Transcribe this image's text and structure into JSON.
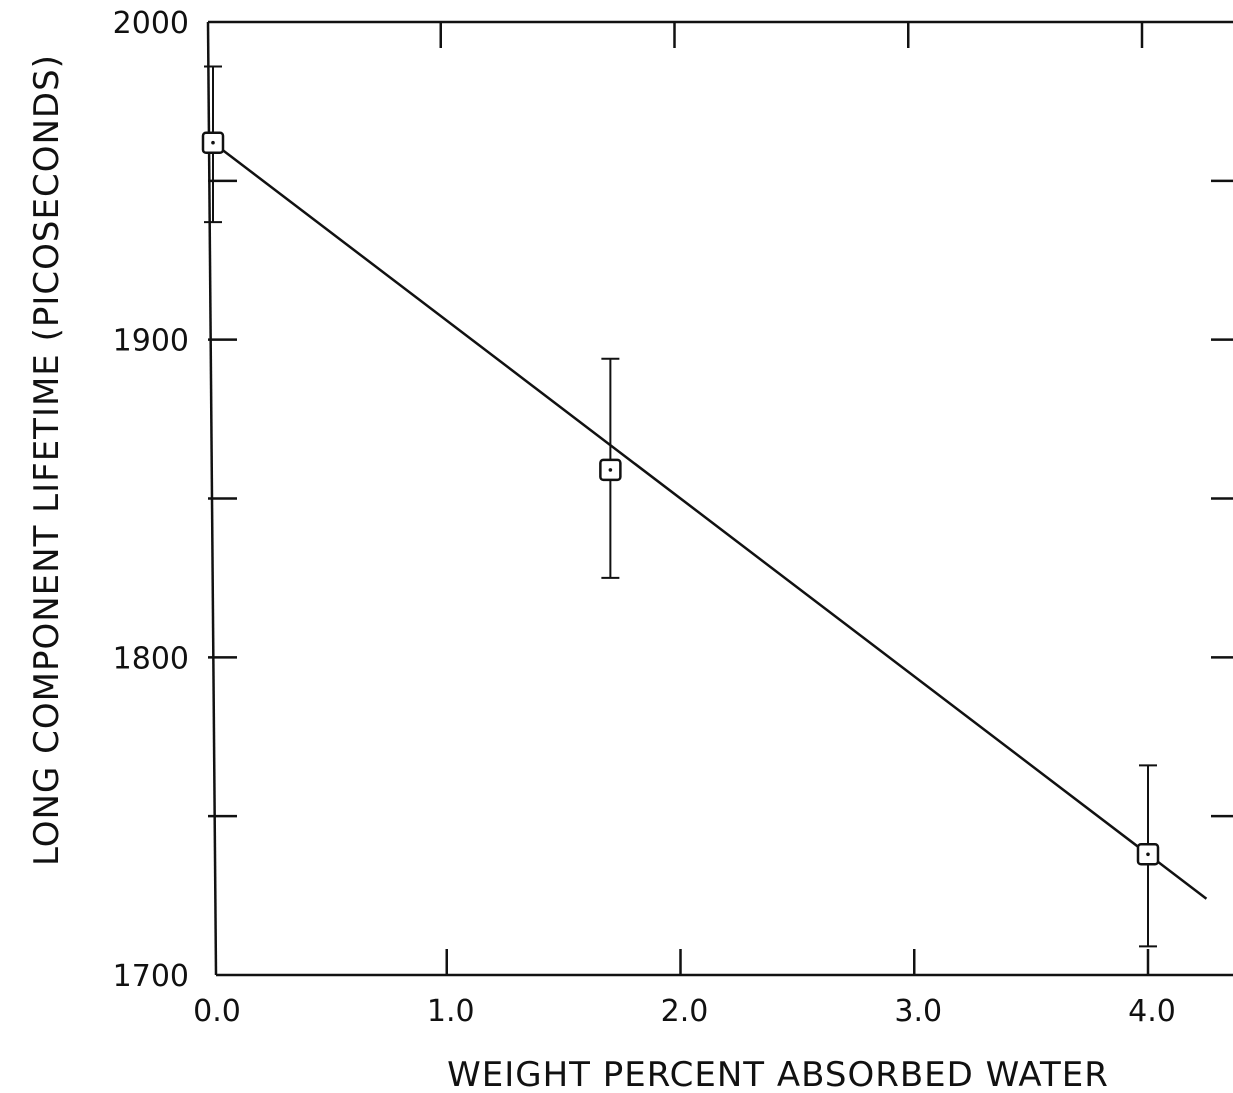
{
  "chart_data": {
    "type": "scatter",
    "xlabel": "WEIGHT PERCENT ABSORBED WATER",
    "ylabel": "LONG COMPONENT LIFETIME (PICOSECONDS)",
    "xlim": [
      0.0,
      4.0
    ],
    "ylim": [
      1700,
      2000
    ],
    "x_ticks": [
      0.0,
      1.0,
      2.0,
      3.0,
      4.0
    ],
    "x_tick_labels": [
      "0.0",
      "1.0",
      "2.0",
      "3.0",
      "4.0"
    ],
    "y_ticks": [
      1700,
      1750,
      1800,
      1850,
      1900,
      1950,
      2000
    ],
    "y_tick_labels": [
      "1700",
      "",
      "1800",
      "",
      "1900",
      "",
      "2000"
    ],
    "grid": false,
    "series": [
      {
        "marker": "square-with-dot",
        "points": [
          {
            "x": 0.0,
            "y": 1962,
            "err_low": 1937,
            "err_high": 1986
          },
          {
            "x": 1.7,
            "y": 1859,
            "err_low": 1825,
            "err_high": 1894
          },
          {
            "x": 4.0,
            "y": 1738,
            "err_low": 1709,
            "err_high": 1766
          }
        ]
      }
    ],
    "fit_line": {
      "x": [
        0.0,
        4.25
      ],
      "y": [
        1962,
        1724
      ]
    }
  }
}
